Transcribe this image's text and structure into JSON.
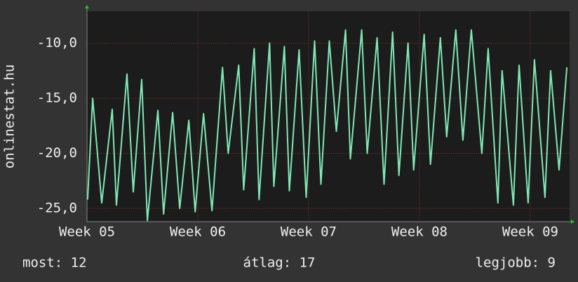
{
  "chart_data": {
    "type": "line",
    "ylabel": "onlinestat.hu",
    "x": [
      5.006,
      5.051,
      5.133,
      5.228,
      5.266,
      5.361,
      5.418,
      5.494,
      5.545,
      5.64,
      5.691,
      5.773,
      5.837,
      5.919,
      5.976,
      6.052,
      6.128,
      6.223,
      6.274,
      6.369,
      6.414,
      6.509,
      6.553,
      6.648,
      6.686,
      6.781,
      6.826,
      6.914,
      6.978,
      7.054,
      7.111,
      7.187,
      7.25,
      7.333,
      7.377,
      7.479,
      7.529,
      7.618,
      7.681,
      7.758,
      7.815,
      7.897,
      7.948,
      8.043,
      8.1,
      8.189,
      8.246,
      8.328,
      8.392,
      8.468,
      8.563,
      8.62,
      8.708,
      8.746,
      8.848,
      8.899,
      8.981,
      9.038,
      9.133,
      9.184,
      9.26,
      9.33
    ],
    "series": [
      {
        "color": "#7fe8b4",
        "values": [
          -24.2,
          -15,
          -24.5,
          -16,
          -24.7,
          -12.8,
          -23.5,
          -13.3,
          -26.1,
          -16.1,
          -25.5,
          -16.3,
          -25,
          -17,
          -25.3,
          -16.4,
          -25.2,
          -12.2,
          -20,
          -12,
          -23.3,
          -10.5,
          -24.2,
          -10,
          -23,
          -10.3,
          -23.4,
          -10.6,
          -24,
          -9.8,
          -22.8,
          -9.8,
          -18,
          -8.8,
          -20.5,
          -8.8,
          -20,
          -9.5,
          -22.8,
          -9,
          -22,
          -10,
          -21.5,
          -9.2,
          -21,
          -9.5,
          -18.5,
          -8.8,
          -18.8,
          -8.8,
          -20,
          -10.5,
          -24.5,
          -12.5,
          -24.7,
          -12,
          -24.5,
          -11.5,
          -24,
          -12.5,
          -21.5,
          -12.2
        ]
      }
    ],
    "xlim": [
      5,
      9.355
    ],
    "ylim": [
      -26.2,
      -7.1
    ],
    "xticks": [
      {
        "value": 5,
        "label": "Week 05"
      },
      {
        "value": 6,
        "label": "Week 06"
      },
      {
        "value": 7,
        "label": "Week 07"
      },
      {
        "value": 8,
        "label": "Week 08"
      },
      {
        "value": 9,
        "label": "Week 09"
      }
    ],
    "yticks": [
      {
        "value": -25,
        "label": "-25,0"
      },
      {
        "value": -20,
        "label": "-20,0"
      },
      {
        "value": -15,
        "label": "-15,0"
      },
      {
        "value": -10,
        "label": "-10,0"
      }
    ],
    "grid": true,
    "stats": [
      "most: 12",
      "átlag: 17",
      "legjobb: 9"
    ]
  }
}
